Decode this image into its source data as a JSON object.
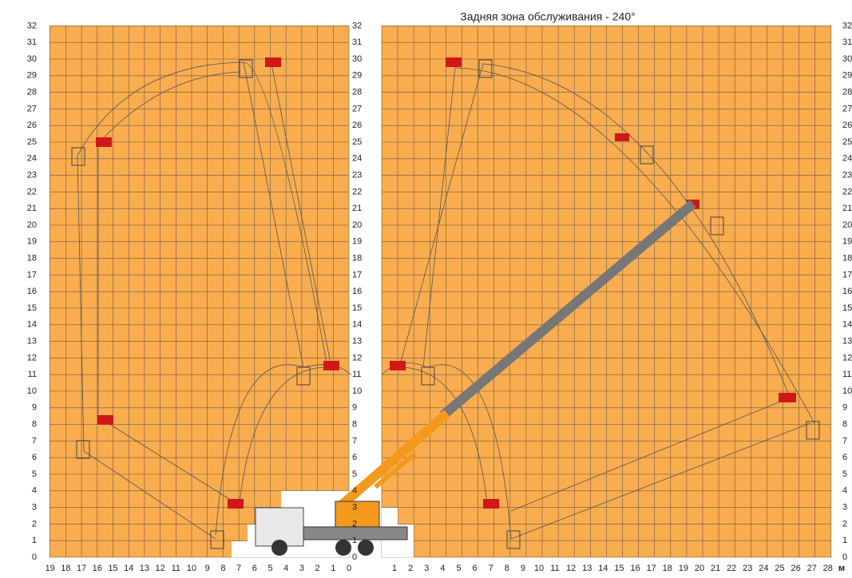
{
  "title": "Задняя зона обслуживания - 240°",
  "y_labels": [
    0,
    1,
    2,
    3,
    4,
    5,
    6,
    7,
    8,
    9,
    10,
    11,
    12,
    13,
    14,
    15,
    16,
    17,
    18,
    19,
    20,
    21,
    22,
    23,
    24,
    25,
    26,
    27,
    28,
    29,
    30,
    31,
    32
  ],
  "left_x_labels": [
    19,
    18,
    17,
    16,
    15,
    14,
    13,
    12,
    11,
    10,
    9,
    8,
    7,
    6,
    5,
    4,
    3,
    2,
    1,
    0
  ],
  "right_x_labels": [
    1,
    2,
    3,
    4,
    5,
    6,
    7,
    8,
    9,
    10,
    11,
    12,
    13,
    14,
    15,
    16,
    17,
    18,
    19,
    20,
    21,
    22,
    23,
    24,
    25,
    26,
    27,
    28
  ],
  "unit": "м"
}
